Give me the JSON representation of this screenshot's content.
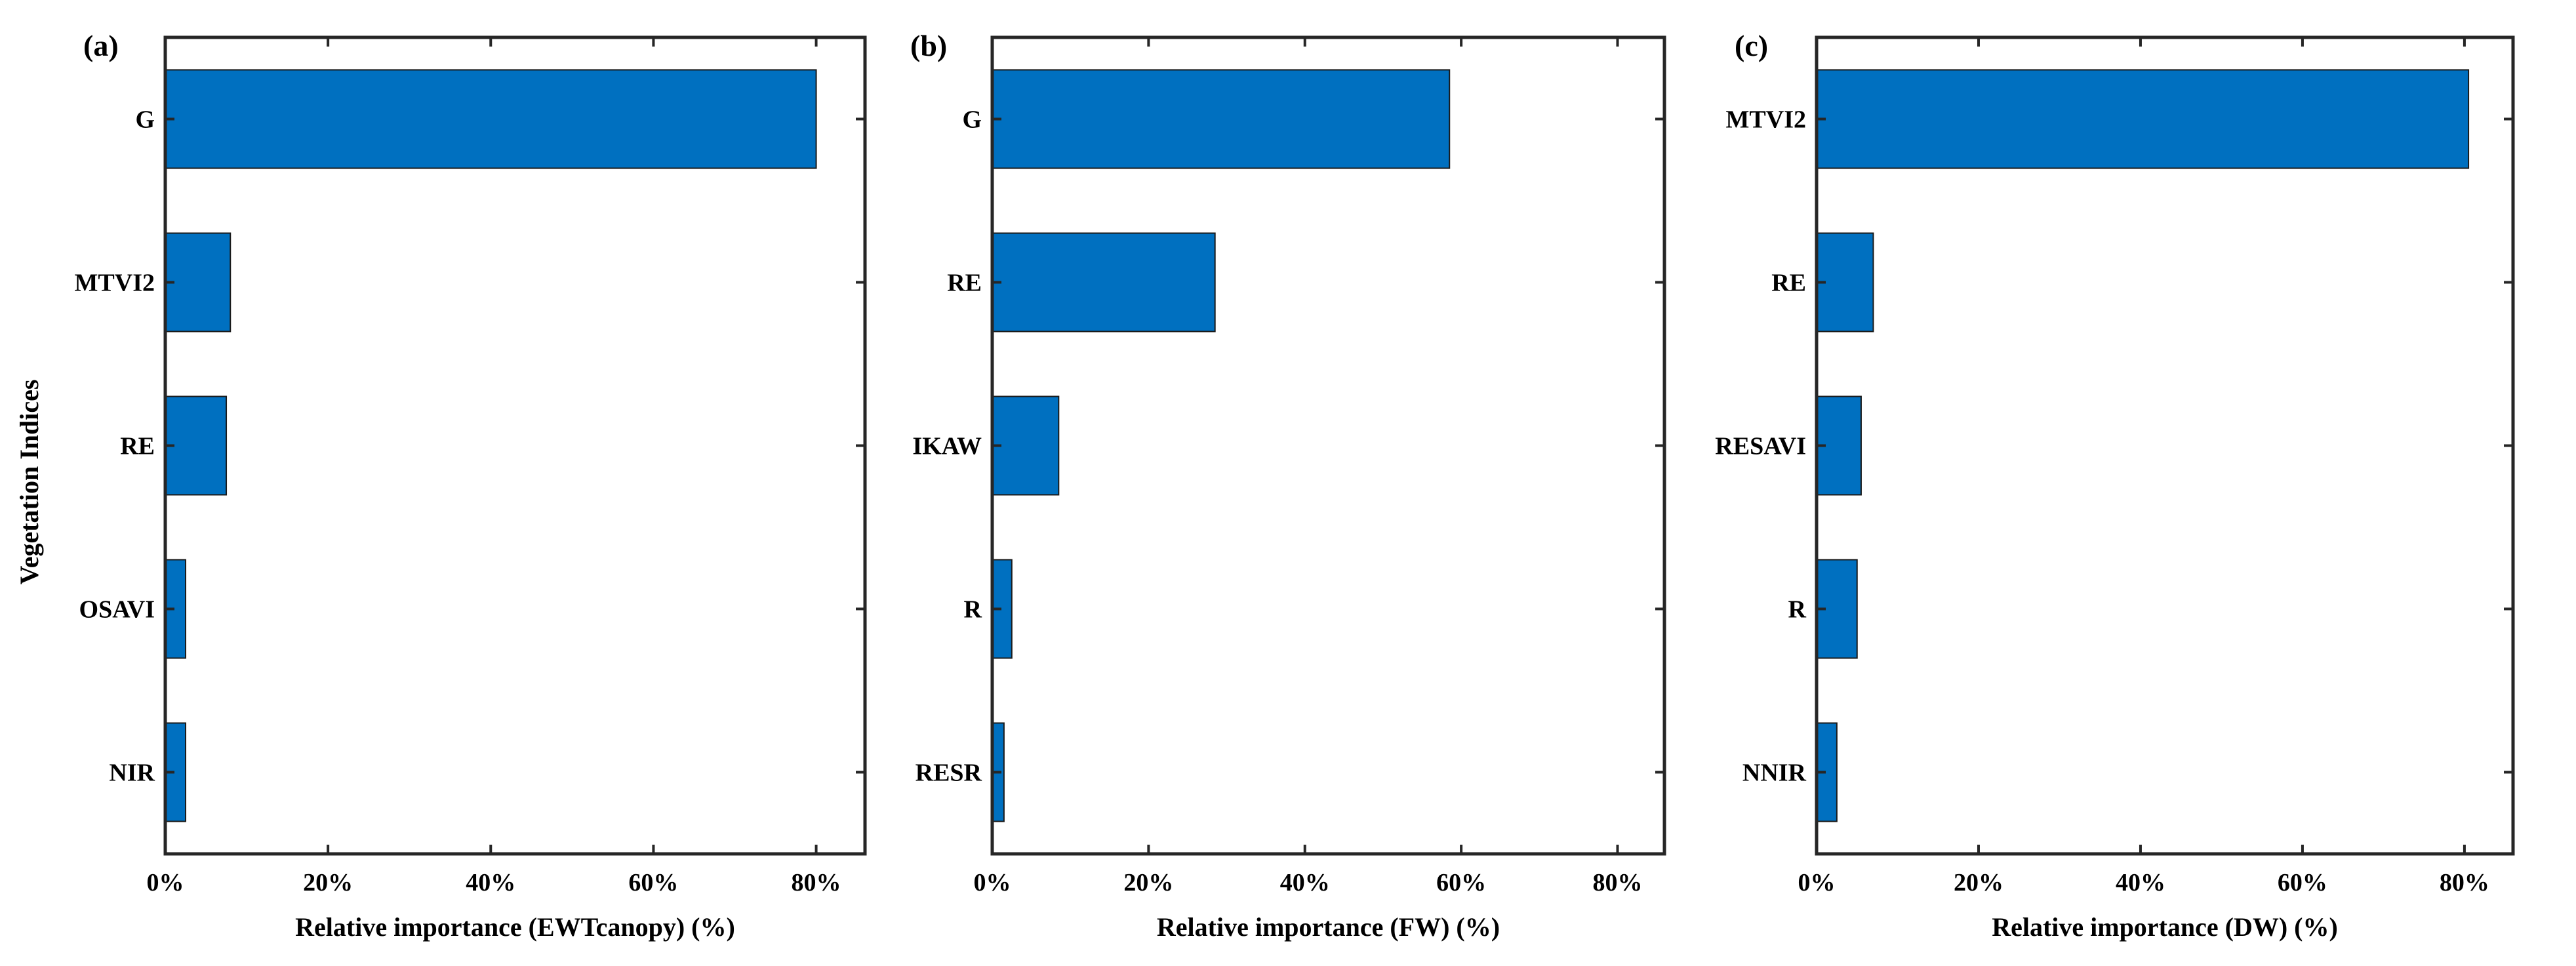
{
  "figure": {
    "y_axis_title": "Vegetation Indices"
  },
  "chart_data": [
    {
      "type": "bar",
      "orientation": "horizontal",
      "panel_label": "(a)",
      "categories": [
        "G",
        "MTVI2",
        "RE",
        "OSAVI",
        "NIR"
      ],
      "values": [
        80,
        8,
        7.5,
        2.5,
        2.5
      ],
      "xlabel": "Relative importance (EWTcanopy) (%)",
      "ylabel": "Vegetation Indices",
      "xlim": [
        0,
        86
      ],
      "xticks": [
        0,
        20,
        40,
        60,
        80
      ],
      "xtick_labels": [
        "0%",
        "20%",
        "40%",
        "60%",
        "80%"
      ],
      "bar_color": "#0070C0"
    },
    {
      "type": "bar",
      "orientation": "horizontal",
      "panel_label": "(b)",
      "categories": [
        "G",
        "RE",
        "IKAW",
        "R",
        "RESR"
      ],
      "values": [
        58.5,
        28.5,
        8.5,
        2.5,
        1.5
      ],
      "xlabel": "Relative importance (FW) (%)",
      "ylabel": "",
      "xlim": [
        0,
        86
      ],
      "xticks": [
        0,
        20,
        40,
        60,
        80
      ],
      "xtick_labels": [
        "0%",
        "20%",
        "40%",
        "60%",
        "80%"
      ],
      "bar_color": "#0070C0"
    },
    {
      "type": "bar",
      "orientation": "horizontal",
      "panel_label": "(c)",
      "categories": [
        "MTVI2",
        "RE",
        "RESAVI",
        "R",
        "NNIR"
      ],
      "values": [
        80.5,
        7,
        5.5,
        5,
        2.5
      ],
      "xlabel": "Relative importance (DW) (%)",
      "ylabel": "",
      "xlim": [
        0,
        86
      ],
      "xticks": [
        0,
        20,
        40,
        60,
        80
      ],
      "xtick_labels": [
        "0%",
        "20%",
        "40%",
        "60%",
        "80%"
      ],
      "bar_color": "#0070C0"
    }
  ]
}
